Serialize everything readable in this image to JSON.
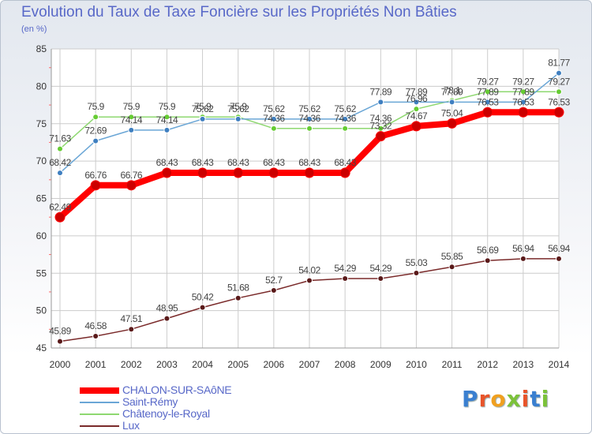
{
  "title": "Evolution du Taux de Taxe Foncière sur les Propriétés Non Bâties",
  "unit_label": "(en %)",
  "logo_text": "Proxiti",
  "colors": {
    "title": "#5868c8",
    "grid": "#cccccc",
    "axis_text": "#333333",
    "label_text": "#444444"
  },
  "chart_data": {
    "type": "line",
    "title": "Evolution du Taux de Taxe Foncière sur les Propriétés Non Bâties",
    "ylabel": "(en %)",
    "ylim": [
      45,
      85
    ],
    "yticks": [
      45,
      50,
      55,
      60,
      65,
      70,
      75,
      80,
      85
    ],
    "categories": [
      "2000",
      "2001",
      "2002",
      "2003",
      "2004",
      "2005",
      "2006",
      "2007",
      "2008",
      "2009",
      "2010",
      "2011",
      "2012",
      "2013",
      "2014"
    ],
    "series": [
      {
        "name": "CHALON-SUR-SAôNE",
        "color": "#ff0000",
        "marker": "#cc0000",
        "width": 8,
        "values": [
          62.49,
          66.76,
          66.76,
          68.43,
          68.43,
          68.43,
          68.43,
          68.43,
          68.43,
          73.32,
          74.67,
          75.04,
          76.53,
          76.53,
          76.53
        ],
        "labels": [
          "62.49",
          "66.76",
          "66.76",
          "68.43",
          "68.43",
          "68.43",
          "68.43",
          "68.43",
          "68.43",
          "73.32",
          "74.67",
          "75.04",
          "76.53",
          "76.53",
          "76.53"
        ]
      },
      {
        "name": "Saint-Rémy",
        "color": "#6aa6d6",
        "marker": "#3f7fc0",
        "width": 1.5,
        "values": [
          68.42,
          72.69,
          74.14,
          74.14,
          75.62,
          75.62,
          75.62,
          75.62,
          75.62,
          77.89,
          77.89,
          77.89,
          77.89,
          77.89,
          81.77
        ],
        "labels": [
          "68.42",
          "72.69",
          "74.14",
          "74.14",
          "75.62",
          "75.62",
          "75.62",
          "75.62",
          "75.62",
          "77.89",
          "77.89",
          "77.89",
          "77.89",
          "77.89",
          "81.77"
        ]
      },
      {
        "name": "Châtenoy-le-Royal",
        "color": "#8ed870",
        "marker": "#66cc33",
        "width": 1.5,
        "values": [
          71.63,
          75.9,
          75.9,
          75.9,
          75.9,
          75.9,
          74.36,
          74.36,
          74.36,
          74.36,
          76.96,
          78.1,
          79.27,
          79.27,
          79.27
        ],
        "labels": [
          "71.63",
          "75.9",
          "75.9",
          "75.9",
          "75.9",
          "75.9",
          "74.36",
          "74.36",
          "74.36",
          "74.36",
          "76.96",
          "78.1",
          "79.27",
          "79.27",
          "79.27"
        ]
      },
      {
        "name": "Lux",
        "color": "#7a2a2a",
        "marker": "#5a1a1a",
        "width": 1.5,
        "values": [
          45.89,
          46.58,
          47.51,
          48.95,
          50.42,
          51.68,
          52.7,
          54.02,
          54.29,
          54.29,
          55.03,
          55.85,
          56.69,
          56.94,
          56.94
        ],
        "labels": [
          "45.89",
          "46.58",
          "47.51",
          "48.95",
          "50.42",
          "51.68",
          "52.7",
          "54.02",
          "54.29",
          "54.29",
          "55.03",
          "55.85",
          "56.69",
          "56.94",
          "56.94"
        ]
      }
    ]
  }
}
